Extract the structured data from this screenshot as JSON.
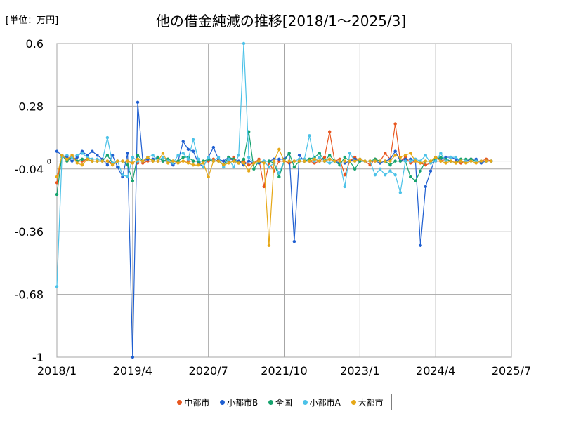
{
  "chart_data": {
    "type": "line",
    "title": "他の借金純減の推移[2018/1～2025/3]",
    "unit_label": "[単位：万円]",
    "ylim": [
      -1,
      0.6
    ],
    "yticks": [
      "0.6",
      "0.28",
      "-0.04",
      "-0.36",
      "-0.68",
      "-1"
    ],
    "zero_label": "0",
    "x_start": "2018/1",
    "x_end": "2025/7",
    "xticks": [
      "2018/1",
      "2019/4",
      "2020/7",
      "2021/10",
      "2023/1",
      "2024/4",
      "2025/7"
    ],
    "grid": true,
    "legend_position": "bottom",
    "x": [
      "2018/1",
      "2018/2",
      "2018/3",
      "2018/4",
      "2018/5",
      "2018/6",
      "2018/7",
      "2018/8",
      "2018/9",
      "2018/10",
      "2018/11",
      "2018/12",
      "2019/1",
      "2019/2",
      "2019/3",
      "2019/4",
      "2019/5",
      "2019/6",
      "2019/7",
      "2019/8",
      "2019/9",
      "2019/10",
      "2019/11",
      "2019/12",
      "2020/1",
      "2020/2",
      "2020/3",
      "2020/4",
      "2020/5",
      "2020/6",
      "2020/7",
      "2020/8",
      "2020/9",
      "2020/10",
      "2020/11",
      "2020/12",
      "2021/1",
      "2021/2",
      "2021/3",
      "2021/4",
      "2021/5",
      "2021/6",
      "2021/7",
      "2021/8",
      "2021/9",
      "2021/10",
      "2021/11",
      "2021/12",
      "2022/1",
      "2022/2",
      "2022/3",
      "2022/4",
      "2022/5",
      "2022/6",
      "2022/7",
      "2022/8",
      "2022/9",
      "2022/10",
      "2022/11",
      "2022/12",
      "2023/1",
      "2023/2",
      "2023/3",
      "2023/4",
      "2023/5",
      "2023/6",
      "2023/7",
      "2023/8",
      "2023/9",
      "2023/10",
      "2023/11",
      "2023/12",
      "2024/1",
      "2024/2",
      "2024/3",
      "2024/4",
      "2024/5",
      "2024/6",
      "2024/7",
      "2024/8",
      "2024/9",
      "2024/10",
      "2024/11",
      "2024/12",
      "2025/1",
      "2025/2",
      "2025/3"
    ],
    "series": [
      {
        "name": "中都市",
        "color": "#e8561e",
        "values": [
          -0.11,
          0.03,
          0.0,
          0.03,
          -0.0,
          0.0,
          0.01,
          0.0,
          -0.0,
          0.0,
          0.0,
          -0.01,
          0.0,
          0.0,
          -0.0,
          -0.01,
          -0.01,
          -0.01,
          0.0,
          0.0,
          0.0,
          0.0,
          0.01,
          0.0,
          -0.0,
          0.0,
          0.0,
          0.0,
          -0.0,
          0.0,
          0.0,
          0.01,
          0.0,
          0.0,
          0.0,
          0.02,
          -0.01,
          0.0,
          -0.02,
          -0.01,
          0.01,
          -0.13,
          -0.01,
          -0.05,
          -0.0,
          -0.0,
          -0.01,
          0.0,
          0.0,
          -0.0,
          0.0,
          -0.01,
          0.0,
          0.02,
          0.15,
          0.0,
          0.01,
          -0.07,
          0.0,
          0.02,
          0.0,
          0.0,
          -0.02,
          0.01,
          0.0,
          0.04,
          0.01,
          0.19,
          -0.0,
          0.02,
          -0.01,
          -0.0,
          -0.01,
          -0.02,
          -0.01,
          0.0,
          0.0,
          0.01,
          0.0,
          -0.0,
          -0.01,
          0.0,
          0.01,
          0.0,
          0.0,
          0.01,
          0.0
        ]
      },
      {
        "name": "小都市B",
        "color": "#1f5fd1",
        "values": [
          0.05,
          0.03,
          0.02,
          0.0,
          0.02,
          0.05,
          0.03,
          0.05,
          0.03,
          0.01,
          -0.02,
          0.03,
          -0.03,
          -0.08,
          0.04,
          -1.0,
          0.3,
          0.0,
          0.01,
          0.01,
          0.02,
          0.0,
          0.0,
          -0.02,
          0.0,
          0.1,
          0.06,
          0.05,
          -0.01,
          -0.03,
          0.02,
          0.07,
          0.01,
          0.0,
          0.02,
          0.0,
          0.0,
          -0.02,
          0.0,
          -0.01,
          -0.01,
          -0.0,
          0.0,
          0.01,
          0.01,
          0.01,
          0.04,
          -0.41,
          0.03,
          0.0,
          0.0,
          0.01,
          -0.0,
          0.0,
          0.01,
          0.0,
          -0.01,
          -0.01,
          0.0,
          0.01,
          0.0,
          0.0,
          0.0,
          0.0,
          -0.01,
          0.0,
          0.01,
          0.05,
          0.0,
          0.01,
          0.01,
          0.0,
          -0.43,
          -0.13,
          -0.05,
          0.02,
          0.01,
          0.02,
          0.02,
          0.01,
          0.0,
          0.0,
          0.01,
          0.01,
          -0.01,
          0.0,
          0.0
        ]
      },
      {
        "name": "全国",
        "color": "#16a36e",
        "values": [
          -0.17,
          0.03,
          0.0,
          0.02,
          0.0,
          0.01,
          0.01,
          0.0,
          0.0,
          0.0,
          0.03,
          -0.01,
          0.0,
          0.0,
          -0.02,
          -0.1,
          0.03,
          0.0,
          0.02,
          0.0,
          0.02,
          0.0,
          0.01,
          0.0,
          0.0,
          0.02,
          0.02,
          0.0,
          0.0,
          0.0,
          0.01,
          0.0,
          0.0,
          -0.02,
          0.02,
          0.01,
          -0.01,
          0.01,
          0.15,
          -0.04,
          0.0,
          0.0,
          0.0,
          -0.01,
          -0.08,
          0.0,
          0.04,
          -0.03,
          0.0,
          0.0,
          0.01,
          0.02,
          0.04,
          0.0,
          0.03,
          0.0,
          -0.02,
          0.02,
          0.0,
          -0.04,
          0.0,
          0.0,
          0.0,
          0.01,
          0.0,
          0.0,
          -0.02,
          0.0,
          0.0,
          0.0,
          -0.08,
          -0.1,
          -0.05,
          0.0,
          0.0,
          0.01,
          0.02,
          0.01,
          0.0,
          -0.01,
          0.01,
          0.01,
          0.01,
          0.0,
          0.0,
          0.0,
          0.0
        ]
      },
      {
        "name": "小都市A",
        "color": "#4cc2e8",
        "values": [
          -0.64,
          0.02,
          0.03,
          0.02,
          0.03,
          0.04,
          0.02,
          0.01,
          0.01,
          0.0,
          0.12,
          -0.01,
          0.0,
          -0.07,
          -0.08,
          0.02,
          0.0,
          0.0,
          0.02,
          0.03,
          0.0,
          0.02,
          0.0,
          -0.01,
          0.03,
          0.04,
          0.01,
          0.11,
          0.01,
          -0.03,
          0.02,
          0.0,
          0.02,
          -0.03,
          0.01,
          -0.03,
          0.03,
          0.6,
          0.02,
          -0.01,
          0.0,
          0.0,
          -0.03,
          -0.01,
          -0.06,
          0.0,
          0.0,
          0.0,
          0.01,
          0.01,
          0.13,
          0.0,
          0.02,
          0.0,
          -0.01,
          0.0,
          0.0,
          -0.13,
          0.04,
          0.0,
          0.01,
          0.0,
          0.0,
          -0.07,
          -0.04,
          -0.07,
          -0.05,
          -0.07,
          -0.16,
          0.0,
          0.0,
          0.01,
          0.0,
          0.03,
          -0.01,
          0.0,
          0.04,
          0.0,
          0.02,
          0.02,
          0.0,
          0.0,
          0.0,
          0.0,
          0.0,
          0.0,
          0.0
        ]
      },
      {
        "name": "大都市",
        "color": "#e6a817",
        "values": [
          -0.08,
          0.03,
          0.01,
          0.03,
          -0.01,
          -0.02,
          0.01,
          0.0,
          0.0,
          0.0,
          0.0,
          -0.02,
          0.0,
          0.0,
          0.0,
          -0.01,
          0.01,
          0.0,
          0.02,
          0.0,
          0.0,
          0.04,
          -0.01,
          0.0,
          -0.01,
          -0.0,
          -0.01,
          -0.02,
          -0.02,
          -0.01,
          -0.08,
          0.0,
          0.0,
          -0.02,
          -0.01,
          0.0,
          -0.01,
          -0.01,
          -0.05,
          -0.01,
          0.0,
          -0.01,
          -0.43,
          0.0,
          0.06,
          0.0,
          0.0,
          0.0,
          0.0,
          0.0,
          0.0,
          0.01,
          0.0,
          0.0,
          0.01,
          0.0,
          0.0,
          0.0,
          0.0,
          0.0,
          0.01,
          0.0,
          0.0,
          0.0,
          0.0,
          0.0,
          0.0,
          0.03,
          0.02,
          0.03,
          0.04,
          0.0,
          -0.01,
          0.0,
          0.0,
          0.02,
          0.0,
          -0.01,
          0.0,
          -0.01,
          0.0,
          -0.01,
          0.0,
          -0.01,
          0.0,
          0.0,
          0.0
        ]
      }
    ]
  }
}
